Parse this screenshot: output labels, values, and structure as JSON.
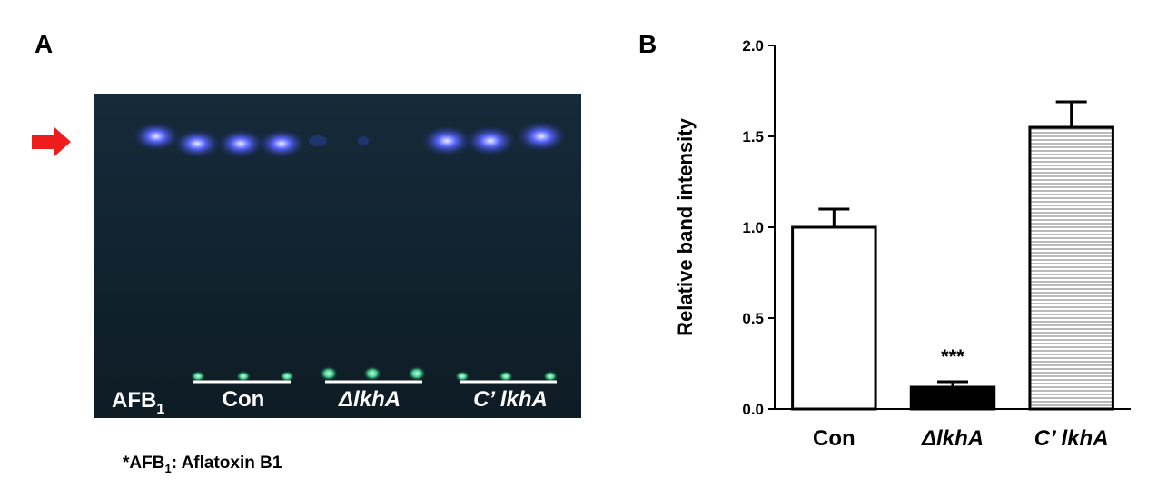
{
  "panel_a": {
    "letter": "A",
    "afb_text": "AFB",
    "afb_sub": "1",
    "lane_labels": [
      "Con",
      "ΔlkhA",
      "C’ lkhA"
    ],
    "footnote": {
      "prefix": "*AFB",
      "sub": "1",
      "suffix": ": Aflatoxin B1"
    }
  },
  "chart_data": {
    "type": "bar",
    "letter": "B",
    "ylabel": "Relative band intensity",
    "categories": [
      "Con",
      "ΔlkhA",
      "C’ lkhA"
    ],
    "values": [
      1.0,
      0.12,
      1.55
    ],
    "errors": [
      0.1,
      0.03,
      0.14
    ],
    "colors": [
      "#ffffff",
      "#000000",
      "#ffffff"
    ],
    "hatch": [
      false,
      false,
      true
    ],
    "annotations": [
      {
        "index": 1,
        "text": "***"
      }
    ],
    "ylim": [
      0,
      2
    ],
    "yticks": [
      {
        "value": 0,
        "label": "0.0"
      },
      {
        "value": 0.5,
        "label": "0.5"
      },
      {
        "value": 1,
        "label": "1.0"
      },
      {
        "value": 1.5,
        "label": "1.5"
      },
      {
        "value": 2,
        "label": "2.0"
      }
    ]
  }
}
